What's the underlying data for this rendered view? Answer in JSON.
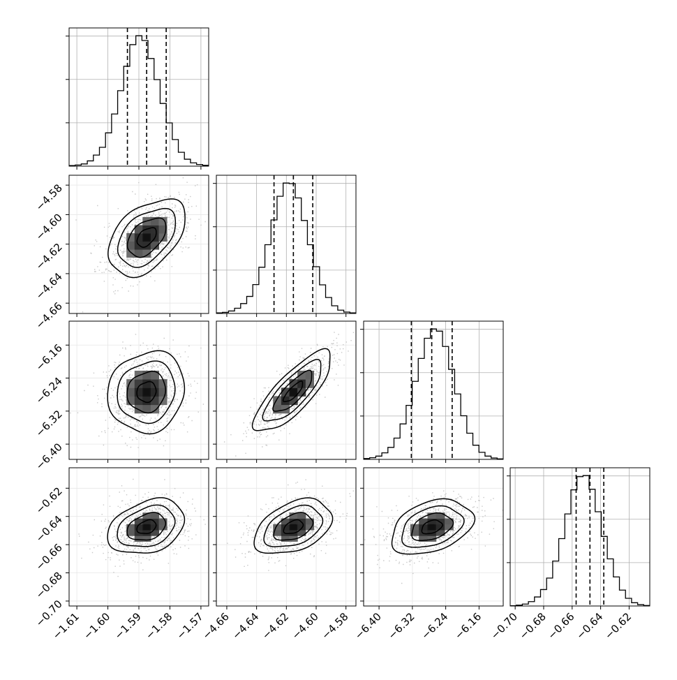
{
  "chart_data": {
    "type": "corner",
    "parameters": [
      {
        "range": [
          -1.6125,
          -1.5675
        ],
        "ticks": [
          "-1.61",
          "-1.60",
          "-1.59",
          "-1.58",
          "-1.57"
        ],
        "tick_values": [
          -1.61,
          -1.6,
          -1.59,
          -1.58,
          -1.57
        ],
        "quantiles": [
          -1.5937,
          -1.5875,
          -1.5812
        ],
        "mean": -1.5875,
        "sd": 0.0062
      },
      {
        "range": [
          -4.667,
          -4.5733
        ],
        "ticks": [
          "-4.66",
          "-4.64",
          "-4.62",
          "-4.60",
          "-4.58"
        ],
        "tick_values": [
          -4.66,
          -4.64,
          -4.62,
          -4.6,
          -4.58
        ],
        "quantiles": [
          -4.6283,
          -4.6153,
          -4.6023
        ],
        "mean": -4.6153,
        "sd": 0.013
      },
      {
        "range": [
          -6.437,
          -6.102
        ],
        "ticks": [
          "-6.40",
          "-6.32",
          "-6.24",
          "-6.16"
        ],
        "tick_values": [
          -6.4,
          -6.32,
          -6.24,
          -6.16
        ],
        "quantiles": [
          -6.3225,
          -6.2735,
          -6.2245
        ],
        "mean": -6.2735,
        "sd": 0.049
      },
      {
        "range": [
          -0.7035,
          -0.6055
        ],
        "ticks": [
          "-0.70",
          "-0.68",
          "-0.66",
          "-0.64",
          "-0.62"
        ],
        "tick_values": [
          -0.7,
          -0.68,
          -0.66,
          -0.64,
          -0.62
        ],
        "quantiles": [
          -0.6572,
          -0.6475,
          -0.6378
        ],
        "mean": -0.6475,
        "sd": 0.0097
      }
    ],
    "hist_counts": [
      [
        2,
        4,
        8,
        19,
        40,
        68,
        120,
        188,
        272,
        360,
        438,
        470,
        453,
        388,
        312,
        226,
        156,
        96,
        50,
        25,
        12,
        6,
        3
      ],
      [
        2,
        4,
        9,
        19,
        36,
        62,
        105,
        168,
        250,
        340,
        426,
        474,
        472,
        420,
        338,
        250,
        170,
        104,
        58,
        28,
        12,
        5,
        2
      ],
      [
        3,
        6,
        12,
        24,
        44,
        78,
        130,
        198,
        286,
        370,
        444,
        478,
        470,
        414,
        330,
        240,
        160,
        96,
        52,
        26,
        12,
        5,
        2
      ],
      [
        1,
        3,
        7,
        16,
        33,
        60,
        102,
        164,
        246,
        336,
        424,
        472,
        476,
        426,
        344,
        254,
        172,
        106,
        58,
        28,
        12,
        5,
        2
      ]
    ],
    "correlations": [
      {
        "pair": [
          0,
          1
        ],
        "rho": 0.45
      },
      {
        "pair": [
          0,
          2
        ],
        "rho": 0.1
      },
      {
        "pair": [
          0,
          3
        ],
        "rho": 0.3
      },
      {
        "pair": [
          1,
          2
        ],
        "rho": 0.8
      },
      {
        "pair": [
          1,
          3
        ],
        "rho": 0.4
      },
      {
        "pair": [
          2,
          3
        ],
        "rho": 0.35
      }
    ],
    "contour_levels_sigma": [
      0.5,
      1.0,
      1.5,
      2.0
    ],
    "title": "",
    "xlabel": "",
    "ylabel": "",
    "grid": true,
    "colors": {
      "line": "#000000",
      "grid": "#b0b0b0",
      "scatter": "#bdbdbd"
    }
  }
}
